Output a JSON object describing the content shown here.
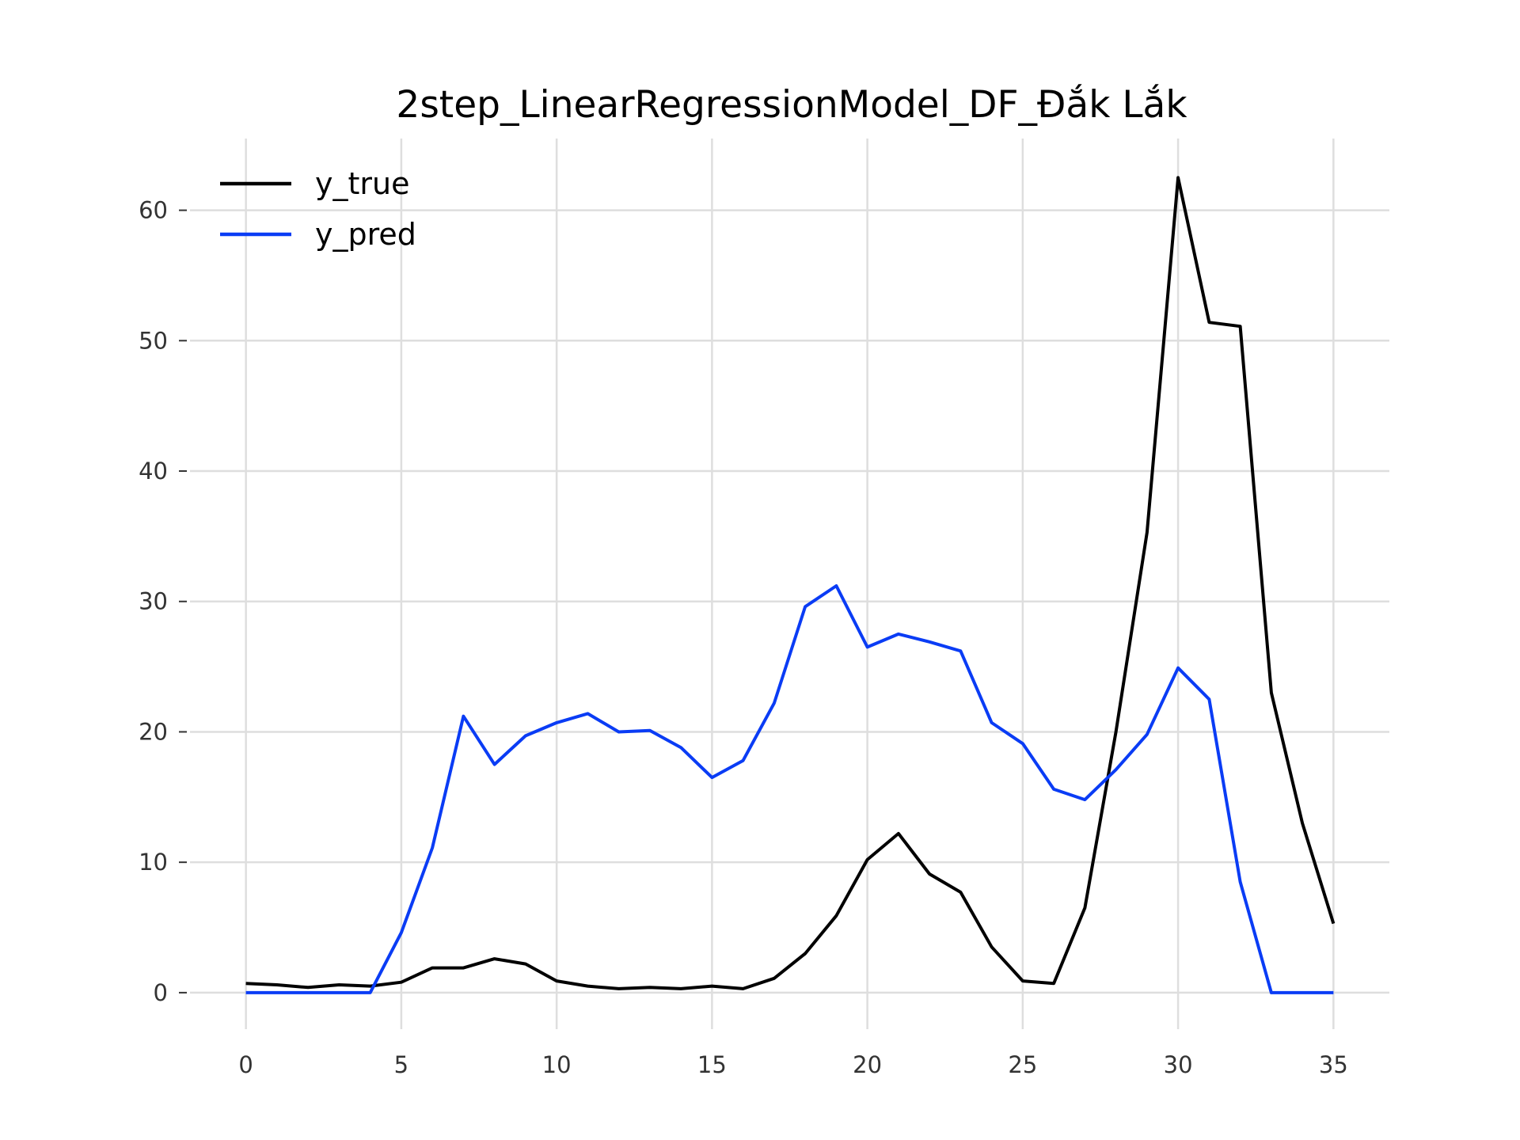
{
  "chart_data": {
    "type": "line",
    "title": "2step_LinearRegressionModel_DF_Đắk Lắk",
    "xlabel": "",
    "ylabel": "",
    "xlim": [
      -1.8,
      36.8
    ],
    "ylim": [
      -2.8,
      65.5
    ],
    "xticks": [
      0,
      5,
      10,
      15,
      20,
      25,
      30,
      35
    ],
    "yticks": [
      0,
      10,
      20,
      30,
      40,
      50,
      60
    ],
    "grid": true,
    "legend_position": "top-left",
    "x": [
      0,
      1,
      2,
      3,
      4,
      5,
      6,
      7,
      8,
      9,
      10,
      11,
      12,
      13,
      14,
      15,
      16,
      17,
      18,
      19,
      20,
      21,
      22,
      23,
      24,
      25,
      26,
      27,
      28,
      29,
      30,
      31,
      32,
      33,
      34,
      35
    ],
    "series": [
      {
        "name": "y_true",
        "color": "#000000",
        "values": [
          0.7,
          0.6,
          0.4,
          0.6,
          0.5,
          0.8,
          1.9,
          1.9,
          2.6,
          2.2,
          0.9,
          0.5,
          0.3,
          0.4,
          0.3,
          0.5,
          0.3,
          1.1,
          3.0,
          5.9,
          10.2,
          12.2,
          9.1,
          7.7,
          3.5,
          0.9,
          0.7,
          6.5,
          20.0,
          35.3,
          62.5,
          51.4,
          51.1,
          23.0,
          13.0,
          5.3
        ]
      },
      {
        "name": "y_pred",
        "color": "#0a3cf5",
        "values": [
          0.0,
          0.0,
          0.0,
          0.0,
          0.0,
          4.6,
          11.1,
          21.2,
          17.5,
          19.7,
          20.7,
          21.4,
          20.0,
          20.1,
          18.8,
          16.5,
          17.8,
          22.2,
          29.6,
          31.2,
          26.5,
          27.5,
          26.9,
          26.2,
          20.7,
          19.1,
          15.6,
          14.8,
          17.1,
          19.8,
          24.9,
          22.5,
          8.5,
          0.0,
          0.0,
          0.0
        ]
      }
    ]
  }
}
